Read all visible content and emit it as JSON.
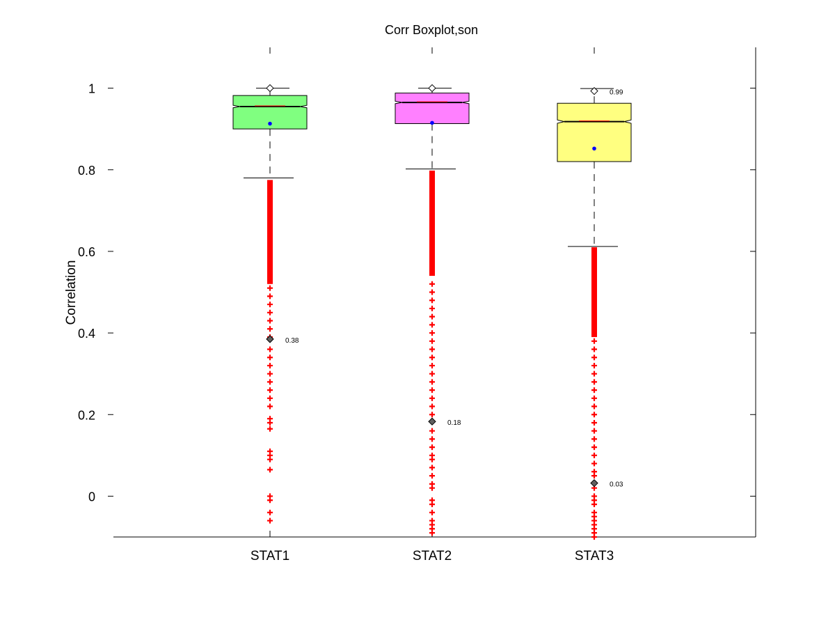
{
  "chart_data": {
    "type": "boxplot",
    "title": "Corr Boxplot,son",
    "xlabel": "",
    "ylabel": "Correlation",
    "ylim": [
      -0.1,
      1.1
    ],
    "yticks": [
      0,
      0.2,
      0.4,
      0.6,
      0.8,
      1
    ],
    "ytick_labels": [
      "0",
      "0.2",
      "0.4",
      "0.6",
      "0.8",
      "1"
    ],
    "categories": [
      "STAT1",
      "STAT2",
      "STAT3"
    ],
    "grid": false,
    "colors": {
      "STAT1": "#80ff80",
      "STAT2": "#ff80ff",
      "STAT3": "#ffff80",
      "outlier": "#ff0000",
      "mean_dot": "#0000ff",
      "median_line": "#000000",
      "median_accent": "#ff0000"
    },
    "boxes": [
      {
        "name": "STAT1",
        "q1": 0.9,
        "median": 0.955,
        "q3": 0.982,
        "notch_low": 0.952,
        "notch_high": 0.958,
        "whisker_low": 0.78,
        "whisker_high": 1.0,
        "mean": 0.913,
        "max_marker": 1.0,
        "min_marker": 0.385,
        "min_label": "0.38",
        "outlier_dense": [
          0.775,
          0.52
        ],
        "outliers": [
          0.51,
          0.49,
          0.47,
          0.45,
          0.43,
          0.41,
          0.39,
          0.36,
          0.34,
          0.32,
          0.3,
          0.28,
          0.26,
          0.24,
          0.22,
          0.19,
          0.18,
          0.165,
          0.11,
          0.1,
          0.09,
          0.065,
          0.0,
          -0.01,
          -0.04,
          -0.06
        ]
      },
      {
        "name": "STAT2",
        "q1": 0.913,
        "median": 0.965,
        "q3": 0.988,
        "notch_low": 0.962,
        "notch_high": 0.968,
        "whisker_low": 0.802,
        "whisker_high": 1.0,
        "mean": 0.915,
        "max_marker": 1.0,
        "min_marker": 0.183,
        "min_label": "0.18",
        "outlier_dense": [
          0.798,
          0.54
        ],
        "outliers": [
          0.52,
          0.5,
          0.48,
          0.46,
          0.44,
          0.42,
          0.4,
          0.38,
          0.36,
          0.34,
          0.32,
          0.3,
          0.28,
          0.26,
          0.24,
          0.22,
          0.2,
          0.16,
          0.14,
          0.12,
          0.1,
          0.09,
          0.07,
          0.05,
          0.03,
          0.02,
          -0.01,
          -0.02,
          -0.04,
          -0.06,
          -0.07,
          -0.08,
          -0.09
        ]
      },
      {
        "name": "STAT3",
        "q1": 0.82,
        "median": 0.918,
        "q3": 0.963,
        "notch_low": 0.914,
        "notch_high": 0.922,
        "whisker_low": 0.612,
        "whisker_high": 0.999,
        "mean": 0.852,
        "max_marker": 0.993,
        "max_label": "0.99",
        "min_marker": 0.032,
        "min_label": "0.03",
        "outlier_dense": [
          0.61,
          0.39
        ],
        "outliers": [
          0.38,
          0.36,
          0.34,
          0.32,
          0.3,
          0.28,
          0.26,
          0.24,
          0.22,
          0.2,
          0.18,
          0.16,
          0.14,
          0.12,
          0.1,
          0.08,
          0.06,
          0.05,
          0.02,
          0.0,
          -0.01,
          -0.02,
          -0.04,
          -0.05,
          -0.06,
          -0.07,
          -0.08,
          -0.09,
          -0.1
        ]
      }
    ]
  }
}
